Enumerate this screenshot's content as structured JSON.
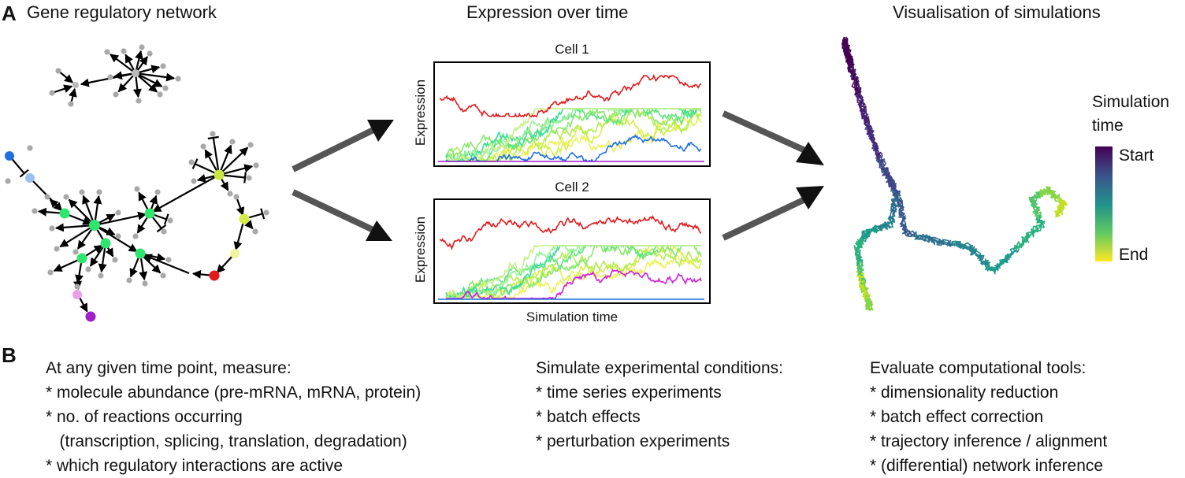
{
  "panel_a": {
    "letter": "A",
    "network_title": "Gene regulatory network",
    "expression_title": "Expression over time",
    "visualisation_title": "Visualisation of simulations",
    "cell1_title": "Cell 1",
    "cell2_title": "Cell 2",
    "y_axis_label": "Expression",
    "x_axis_label": "Simulation time",
    "legend_title_line1": "Simulation",
    "legend_title_line2": "time",
    "legend_start": "Start",
    "legend_end": "End"
  },
  "panel_b": {
    "letter": "B",
    "measure": {
      "header": "At any given time point, measure:",
      "items": [
        "* molecule abundance (pre-mRNA, mRNA, protein)",
        "* no. of reactions occurring",
        "   (transcription, splicing, translation, degradation)",
        "* which regulatory interactions are active"
      ]
    },
    "simulate": {
      "header": "Simulate experimental conditions:",
      "items": [
        "* time series experiments",
        "* batch effects",
        "* perturbation experiments"
      ]
    },
    "evaluate": {
      "header": "Evaluate computational tools:",
      "items": [
        "* dimensionality reduction",
        "* batch effect correction",
        "* trajectory inference / alignment",
        "* (differential) network inference"
      ]
    }
  },
  "colors": {
    "red": "#e31a1c",
    "yellow_green": "#c8e63c",
    "green": "#2ee66e",
    "blue": "#1f6fe0",
    "light_blue": "#9cc0f0",
    "purple": "#a020c8",
    "pink": "#e8a0e8",
    "grey_node": "#a8a8a8",
    "arrow_grey": "#555555",
    "viridis_start": "#440154",
    "viridis_end": "#fde725"
  }
}
